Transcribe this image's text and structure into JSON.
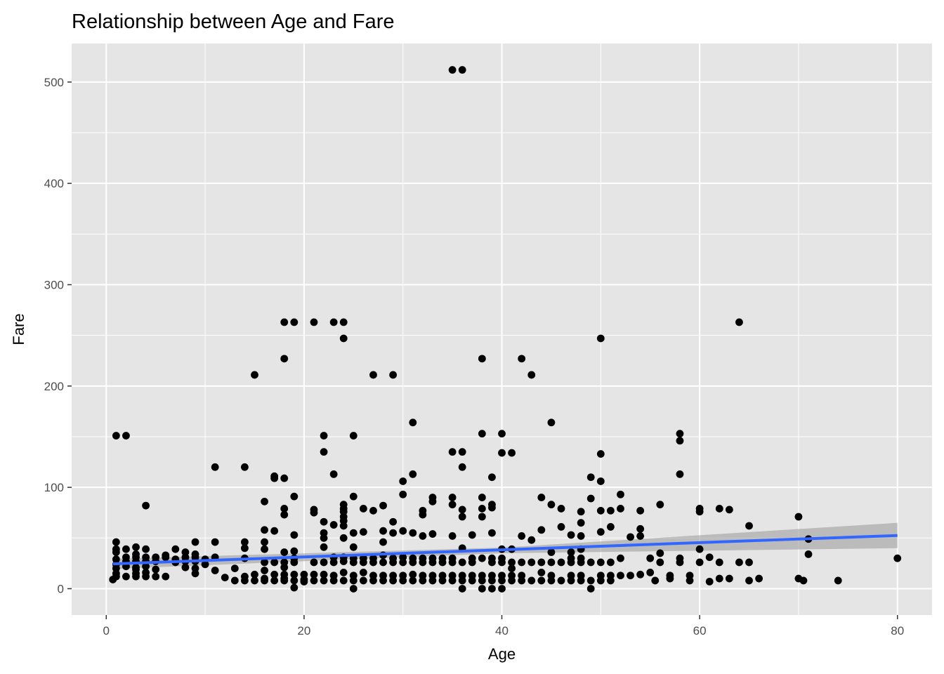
{
  "chart_data": {
    "type": "scatter",
    "title": "Relationship between Age and Fare",
    "xlabel": "Age",
    "ylabel": "Fare",
    "xlim": [
      -3.5,
      83.5
    ],
    "ylim": [
      -26,
      538
    ],
    "x_ticks": [
      0,
      20,
      40,
      60,
      80
    ],
    "y_ticks": [
      0,
      100,
      200,
      300,
      400,
      500
    ],
    "x_tick_labels": [
      "0",
      "20",
      "40",
      "60",
      "80"
    ],
    "y_tick_labels": [
      "0",
      "100",
      "200",
      "300",
      "400",
      "500"
    ],
    "grid": true,
    "legend": "none",
    "colors": {
      "panel": "#e5e5e5",
      "grid": "#ffffff",
      "points": "#000000",
      "trend": "#3366ff",
      "ribbon": "#999999"
    },
    "trend": {
      "method": "linear",
      "line": [
        [
          0.67,
          24.5
        ],
        [
          80,
          52.5
        ]
      ],
      "ci_upper": [
        [
          0.67,
          29.5
        ],
        [
          40,
          40.5
        ],
        [
          80,
          65.0
        ]
      ],
      "ci_lower": [
        [
          0.67,
          19.5
        ],
        [
          40,
          35.0
        ],
        [
          80,
          40.0
        ]
      ]
    },
    "points": [
      [
        35,
        512
      ],
      [
        36,
        512
      ],
      [
        18,
        263
      ],
      [
        19,
        263
      ],
      [
        21,
        263
      ],
      [
        23,
        263
      ],
      [
        24,
        263
      ],
      [
        64,
        263
      ],
      [
        24,
        247
      ],
      [
        50,
        247
      ],
      [
        18,
        227
      ],
      [
        38,
        227
      ],
      [
        42,
        227
      ],
      [
        15,
        211
      ],
      [
        27,
        211
      ],
      [
        29,
        211
      ],
      [
        43,
        211
      ],
      [
        31,
        164
      ],
      [
        45,
        164
      ],
      [
        1,
        151
      ],
      [
        2,
        151
      ],
      [
        22,
        151
      ],
      [
        25,
        151
      ],
      [
        38,
        153
      ],
      [
        40,
        153
      ],
      [
        58,
        153
      ],
      [
        58,
        146
      ],
      [
        22,
        135
      ],
      [
        35,
        135
      ],
      [
        36,
        135
      ],
      [
        40,
        134
      ],
      [
        41,
        134
      ],
      [
        50,
        133
      ],
      [
        11,
        120
      ],
      [
        14,
        120
      ],
      [
        36,
        120
      ],
      [
        17,
        111
      ],
      [
        17,
        109
      ],
      [
        18,
        109
      ],
      [
        23,
        113
      ],
      [
        31,
        113
      ],
      [
        39,
        110
      ],
      [
        49,
        110
      ],
      [
        58,
        113
      ],
      [
        30,
        106
      ],
      [
        50,
        106
      ],
      [
        19,
        91
      ],
      [
        25,
        91
      ],
      [
        30,
        93
      ],
      [
        33,
        90
      ],
      [
        35,
        90
      ],
      [
        38,
        90
      ],
      [
        44,
        90
      ],
      [
        49,
        89
      ],
      [
        52,
        93
      ],
      [
        16,
        86
      ],
      [
        24,
        83
      ],
      [
        28,
        82
      ],
      [
        33,
        86
      ],
      [
        35,
        83
      ],
      [
        39,
        83
      ],
      [
        45,
        83
      ],
      [
        56,
        83
      ],
      [
        4,
        82
      ],
      [
        18,
        79
      ],
      [
        21,
        78
      ],
      [
        24,
        79
      ],
      [
        24,
        76
      ],
      [
        26,
        79
      ],
      [
        27,
        77
      ],
      [
        32,
        77
      ],
      [
        36,
        78
      ],
      [
        38,
        79
      ],
      [
        39,
        80
      ],
      [
        46,
        79
      ],
      [
        48,
        76
      ],
      [
        50,
        77
      ],
      [
        51,
        77
      ],
      [
        52,
        79
      ],
      [
        54,
        77
      ],
      [
        60,
        79
      ],
      [
        60,
        76
      ],
      [
        62,
        79
      ],
      [
        63,
        78
      ],
      [
        70,
        71
      ],
      [
        18,
        73
      ],
      [
        21,
        75
      ],
      [
        22,
        66
      ],
      [
        23,
        63
      ],
      [
        24,
        71
      ],
      [
        24,
        67
      ],
      [
        24,
        62
      ],
      [
        29,
        66
      ],
      [
        32,
        73
      ],
      [
        36,
        71
      ],
      [
        38,
        71
      ],
      [
        48,
        65
      ],
      [
        16,
        58
      ],
      [
        17,
        57
      ],
      [
        22,
        55
      ],
      [
        22,
        50
      ],
      [
        24,
        50
      ],
      [
        25,
        55
      ],
      [
        26,
        56
      ],
      [
        28,
        57
      ],
      [
        29,
        55
      ],
      [
        30,
        57
      ],
      [
        31,
        55
      ],
      [
        32,
        52
      ],
      [
        33,
        54
      ],
      [
        35,
        52
      ],
      [
        37,
        53
      ],
      [
        39,
        55
      ],
      [
        42,
        52
      ],
      [
        43,
        48
      ],
      [
        44,
        58
      ],
      [
        46,
        61
      ],
      [
        47,
        53
      ],
      [
        48,
        52
      ],
      [
        50,
        56
      ],
      [
        51,
        61
      ],
      [
        53,
        51
      ],
      [
        54,
        59
      ],
      [
        54,
        52
      ],
      [
        65,
        62
      ],
      [
        1,
        46
      ],
      [
        1,
        39
      ],
      [
        1,
        36
      ],
      [
        1,
        29
      ],
      [
        1,
        24
      ],
      [
        1,
        20
      ],
      [
        1,
        15
      ],
      [
        1,
        12
      ],
      [
        0.67,
        9
      ],
      [
        2,
        39
      ],
      [
        2,
        31
      ],
      [
        2,
        27
      ],
      [
        2,
        22
      ],
      [
        2,
        12
      ],
      [
        3,
        41
      ],
      [
        3,
        34
      ],
      [
        3,
        31
      ],
      [
        3,
        27
      ],
      [
        3,
        21
      ],
      [
        3,
        19
      ],
      [
        3,
        15
      ],
      [
        3,
        12
      ],
      [
        4,
        39
      ],
      [
        4,
        31
      ],
      [
        4,
        27
      ],
      [
        4,
        22
      ],
      [
        4,
        16
      ],
      [
        4,
        12
      ],
      [
        5,
        31
      ],
      [
        5,
        27
      ],
      [
        5,
        19
      ],
      [
        5,
        12
      ],
      [
        6,
        33
      ],
      [
        6,
        31
      ],
      [
        6,
        12
      ],
      [
        7,
        39
      ],
      [
        7,
        29
      ],
      [
        7,
        26
      ],
      [
        8,
        36
      ],
      [
        8,
        31
      ],
      [
        8,
        27
      ],
      [
        8,
        21
      ],
      [
        9,
        46
      ],
      [
        9,
        34
      ],
      [
        9,
        31
      ],
      [
        9,
        27
      ],
      [
        9,
        20
      ],
      [
        9,
        15
      ],
      [
        10,
        29
      ],
      [
        10,
        24
      ],
      [
        11,
        46
      ],
      [
        11,
        31
      ],
      [
        11,
        18
      ],
      [
        12,
        11
      ],
      [
        13,
        20
      ],
      [
        13,
        8
      ],
      [
        14,
        46
      ],
      [
        14,
        40
      ],
      [
        14,
        30
      ],
      [
        14,
        12
      ],
      [
        14,
        8
      ],
      [
        15,
        14
      ],
      [
        15,
        8
      ],
      [
        16,
        46
      ],
      [
        16,
        39
      ],
      [
        16,
        26
      ],
      [
        16,
        18
      ],
      [
        16,
        10
      ],
      [
        16,
        8
      ],
      [
        17,
        26
      ],
      [
        17,
        14
      ],
      [
        17,
        8
      ],
      [
        18,
        36
      ],
      [
        18,
        26
      ],
      [
        18,
        21
      ],
      [
        18,
        14
      ],
      [
        18,
        10
      ],
      [
        18,
        8
      ],
      [
        19,
        53
      ],
      [
        19,
        37
      ],
      [
        19,
        30
      ],
      [
        19,
        26
      ],
      [
        19,
        14
      ],
      [
        19,
        8
      ],
      [
        19,
        1
      ],
      [
        20,
        14
      ],
      [
        20,
        9
      ],
      [
        20,
        7
      ],
      [
        21,
        26
      ],
      [
        21,
        14
      ],
      [
        21,
        8
      ],
      [
        22,
        41
      ],
      [
        22,
        26
      ],
      [
        22,
        14
      ],
      [
        22,
        8
      ],
      [
        23,
        31
      ],
      [
        23,
        26
      ],
      [
        23,
        13
      ],
      [
        23,
        8
      ],
      [
        24,
        31
      ],
      [
        24,
        27
      ],
      [
        24,
        16
      ],
      [
        24,
        8
      ],
      [
        25,
        41
      ],
      [
        25,
        30
      ],
      [
        25,
        26
      ],
      [
        25,
        13
      ],
      [
        25,
        8
      ],
      [
        25,
        0
      ],
      [
        26,
        30
      ],
      [
        26,
        26
      ],
      [
        26,
        16
      ],
      [
        26,
        8
      ],
      [
        27,
        30
      ],
      [
        27,
        26
      ],
      [
        27,
        13
      ],
      [
        27,
        8
      ],
      [
        28,
        46
      ],
      [
        28,
        33
      ],
      [
        28,
        26
      ],
      [
        28,
        13
      ],
      [
        28,
        8
      ],
      [
        29,
        30
      ],
      [
        29,
        26
      ],
      [
        29,
        13
      ],
      [
        29,
        8
      ],
      [
        30,
        31
      ],
      [
        30,
        26
      ],
      [
        30,
        13
      ],
      [
        30,
        8
      ],
      [
        31,
        30
      ],
      [
        31,
        26
      ],
      [
        31,
        14
      ],
      [
        31,
        8
      ],
      [
        32,
        30
      ],
      [
        32,
        26
      ],
      [
        32,
        13
      ],
      [
        32,
        8
      ],
      [
        33,
        30
      ],
      [
        33,
        26
      ],
      [
        33,
        13
      ],
      [
        33,
        8
      ],
      [
        34,
        30
      ],
      [
        34,
        26
      ],
      [
        34,
        13
      ],
      [
        34,
        8
      ],
      [
        35,
        30
      ],
      [
        35,
        26
      ],
      [
        35,
        13
      ],
      [
        35,
        8
      ],
      [
        36,
        40
      ],
      [
        36,
        26
      ],
      [
        36,
        13
      ],
      [
        36,
        8
      ],
      [
        36,
        0
      ],
      [
        37,
        30
      ],
      [
        37,
        26
      ],
      [
        37,
        13
      ],
      [
        37,
        8
      ],
      [
        38,
        30
      ],
      [
        38,
        13
      ],
      [
        38,
        8
      ],
      [
        38,
        0
      ],
      [
        39,
        30
      ],
      [
        39,
        26
      ],
      [
        39,
        13
      ],
      [
        39,
        8
      ],
      [
        39,
        0
      ],
      [
        40,
        39
      ],
      [
        40,
        30
      ],
      [
        40,
        26
      ],
      [
        40,
        13
      ],
      [
        40,
        8
      ],
      [
        40,
        0
      ],
      [
        41,
        39
      ],
      [
        41,
        26
      ],
      [
        41,
        20
      ],
      [
        41,
        13
      ],
      [
        41,
        8
      ],
      [
        42,
        26
      ],
      [
        42,
        13
      ],
      [
        42,
        8
      ],
      [
        43,
        26
      ],
      [
        43,
        8
      ],
      [
        44,
        26
      ],
      [
        44,
        16
      ],
      [
        44,
        8
      ],
      [
        45,
        36
      ],
      [
        45,
        26
      ],
      [
        45,
        13
      ],
      [
        45,
        8
      ],
      [
        46,
        26
      ],
      [
        46,
        8
      ],
      [
        47,
        36
      ],
      [
        47,
        30
      ],
      [
        47,
        26
      ],
      [
        47,
        13
      ],
      [
        47,
        8
      ],
      [
        48,
        39
      ],
      [
        48,
        30
      ],
      [
        48,
        26
      ],
      [
        48,
        13
      ],
      [
        48,
        8
      ],
      [
        49,
        26
      ],
      [
        49,
        8
      ],
      [
        49,
        0
      ],
      [
        50,
        26
      ],
      [
        50,
        13
      ],
      [
        50,
        8
      ],
      [
        51,
        26
      ],
      [
        51,
        13
      ],
      [
        51,
        8
      ],
      [
        52,
        30
      ],
      [
        52,
        13
      ],
      [
        53,
        13
      ],
      [
        54,
        14
      ],
      [
        55,
        30
      ],
      [
        55,
        16
      ],
      [
        55.5,
        8
      ],
      [
        56,
        35
      ],
      [
        56,
        26
      ],
      [
        57,
        13
      ],
      [
        57,
        10
      ],
      [
        58,
        30
      ],
      [
        58,
        26
      ],
      [
        59,
        13
      ],
      [
        59,
        8
      ],
      [
        60,
        39
      ],
      [
        60,
        26
      ],
      [
        61,
        31
      ],
      [
        61,
        7
      ],
      [
        62,
        26
      ],
      [
        62,
        10
      ],
      [
        63,
        10
      ],
      [
        64,
        26
      ],
      [
        65,
        26
      ],
      [
        65,
        8
      ],
      [
        66,
        10
      ],
      [
        70,
        10
      ],
      [
        70.5,
        8
      ],
      [
        71,
        49
      ],
      [
        71,
        34
      ],
      [
        74,
        8
      ],
      [
        80,
        30
      ]
    ]
  }
}
